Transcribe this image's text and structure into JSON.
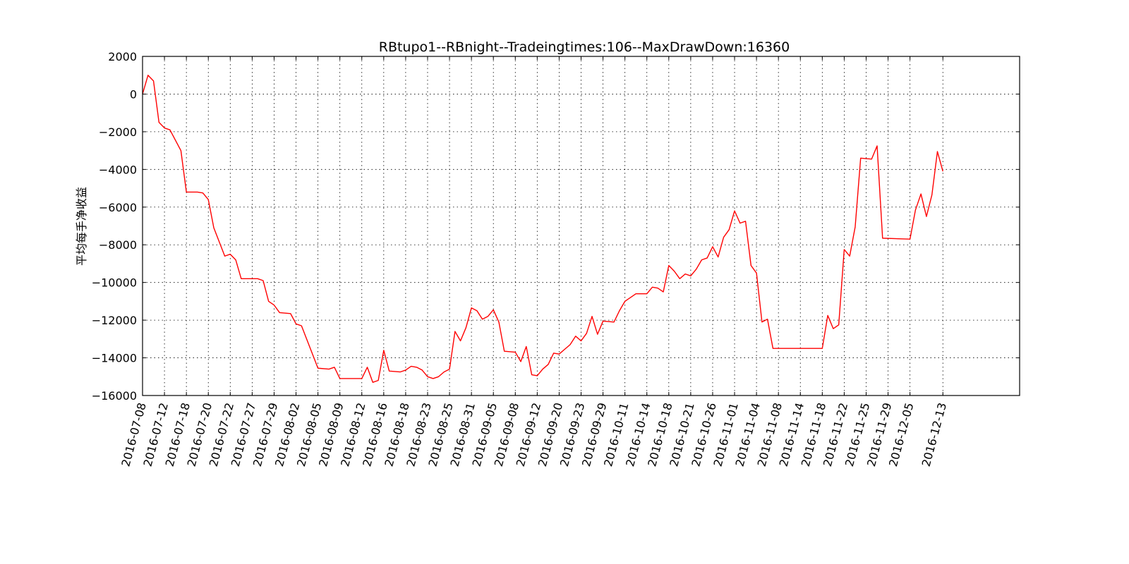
{
  "chart_data": {
    "type": "line",
    "title": "RBtupo1--RBnight--Tradeingtimes:106--MaxDrawDown:16360",
    "xlabel": "",
    "ylabel": "平均每手净收益",
    "ylim": [
      -16000,
      2000
    ],
    "yticks": [
      2000,
      0,
      -2000,
      -4000,
      -6000,
      -8000,
      -10000,
      -12000,
      -14000,
      -16000
    ],
    "xlim": [
      0,
      160
    ],
    "xticks": [
      {
        "x": 0,
        "label": "2016-07-08"
      },
      {
        "x": 4,
        "label": "2016-07-12"
      },
      {
        "x": 8,
        "label": "2016-07-18"
      },
      {
        "x": 12,
        "label": "2016-07-20"
      },
      {
        "x": 16,
        "label": "2016-07-22"
      },
      {
        "x": 20,
        "label": "2016-07-27"
      },
      {
        "x": 24,
        "label": "2016-07-29"
      },
      {
        "x": 28,
        "label": "2016-08-02"
      },
      {
        "x": 32,
        "label": "2016-08-05"
      },
      {
        "x": 36,
        "label": "2016-08-09"
      },
      {
        "x": 40,
        "label": "2016-08-12"
      },
      {
        "x": 44,
        "label": "2016-08-16"
      },
      {
        "x": 48,
        "label": "2016-08-18"
      },
      {
        "x": 52,
        "label": "2016-08-23"
      },
      {
        "x": 56,
        "label": "2016-08-25"
      },
      {
        "x": 60,
        "label": "2016-08-31"
      },
      {
        "x": 64,
        "label": "2016-09-05"
      },
      {
        "x": 68,
        "label": "2016-09-08"
      },
      {
        "x": 72,
        "label": "2016-09-12"
      },
      {
        "x": 76,
        "label": "2016-09-20"
      },
      {
        "x": 80,
        "label": "2016-09-23"
      },
      {
        "x": 84,
        "label": "2016-09-29"
      },
      {
        "x": 88,
        "label": "2016-10-11"
      },
      {
        "x": 92,
        "label": "2016-10-14"
      },
      {
        "x": 96,
        "label": "2016-10-18"
      },
      {
        "x": 100,
        "label": "2016-10-21"
      },
      {
        "x": 104,
        "label": "2016-10-26"
      },
      {
        "x": 108,
        "label": "2016-11-01"
      },
      {
        "x": 112,
        "label": "2016-11-04"
      },
      {
        "x": 116,
        "label": "2016-11-08"
      },
      {
        "x": 120,
        "label": "2016-11-14"
      },
      {
        "x": 124,
        "label": "2016-11-18"
      },
      {
        "x": 128,
        "label": "2016-11-22"
      },
      {
        "x": 132,
        "label": "2016-11-25"
      },
      {
        "x": 136,
        "label": "2016-11-29"
      },
      {
        "x": 140,
        "label": "2016-12-05"
      },
      {
        "x": 146,
        "label": "2016-12-13"
      }
    ],
    "grid": true,
    "series": [
      {
        "color": "#ff0000",
        "points": [
          [
            0,
            0
          ],
          [
            1,
            1000
          ],
          [
            2,
            700
          ],
          [
            3,
            -1500
          ],
          [
            4,
            -1800
          ],
          [
            5,
            -1900
          ],
          [
            7,
            -3000
          ],
          [
            8,
            -5200
          ],
          [
            10,
            -5200
          ],
          [
            11,
            -5250
          ],
          [
            12,
            -5600
          ],
          [
            13,
            -7100
          ],
          [
            15,
            -8600
          ],
          [
            16,
            -8500
          ],
          [
            17,
            -8800
          ],
          [
            18,
            -9800
          ],
          [
            20,
            -9800
          ],
          [
            21,
            -9800
          ],
          [
            22,
            -9900
          ],
          [
            23,
            -11000
          ],
          [
            24,
            -11200
          ],
          [
            25,
            -11600
          ],
          [
            27,
            -11650
          ],
          [
            28,
            -12200
          ],
          [
            29,
            -12300
          ],
          [
            32,
            -14550
          ],
          [
            34,
            -14600
          ],
          [
            35,
            -14500
          ],
          [
            36,
            -15100
          ],
          [
            40,
            -15100
          ],
          [
            41,
            -14500
          ],
          [
            42,
            -15300
          ],
          [
            43,
            -15200
          ],
          [
            44,
            -13600
          ],
          [
            45,
            -14700
          ],
          [
            47,
            -14750
          ],
          [
            48,
            -14650
          ],
          [
            49,
            -14450
          ],
          [
            50,
            -14500
          ],
          [
            51,
            -14650
          ],
          [
            52,
            -15000
          ],
          [
            53,
            -15100
          ],
          [
            54,
            -15000
          ],
          [
            55,
            -14750
          ],
          [
            56,
            -14600
          ],
          [
            57,
            -12600
          ],
          [
            58,
            -13100
          ],
          [
            59,
            -12400
          ],
          [
            60,
            -11350
          ],
          [
            61,
            -11500
          ],
          [
            62,
            -11950
          ],
          [
            63,
            -11800
          ],
          [
            64,
            -11450
          ],
          [
            65,
            -12100
          ],
          [
            66,
            -13650
          ],
          [
            68,
            -13700
          ],
          [
            69,
            -14200
          ],
          [
            70,
            -13400
          ],
          [
            71,
            -14900
          ],
          [
            72,
            -14950
          ],
          [
            73,
            -14600
          ],
          [
            74,
            -14350
          ],
          [
            75,
            -13750
          ],
          [
            76,
            -13800
          ],
          [
            77,
            -13550
          ],
          [
            78,
            -13300
          ],
          [
            79,
            -12850
          ],
          [
            80,
            -13100
          ],
          [
            81,
            -12700
          ],
          [
            82,
            -11800
          ],
          [
            83,
            -12750
          ],
          [
            84,
            -12050
          ],
          [
            86,
            -12100
          ],
          [
            87,
            -11500
          ],
          [
            88,
            -11000
          ],
          [
            89,
            -10800
          ],
          [
            90,
            -10600
          ],
          [
            92,
            -10600
          ],
          [
            93,
            -10250
          ],
          [
            94,
            -10300
          ],
          [
            95,
            -10500
          ],
          [
            96,
            -9100
          ],
          [
            97,
            -9400
          ],
          [
            98,
            -9800
          ],
          [
            99,
            -9550
          ],
          [
            100,
            -9650
          ],
          [
            101,
            -9300
          ],
          [
            102,
            -8800
          ],
          [
            103,
            -8700
          ],
          [
            104,
            -8100
          ],
          [
            105,
            -8650
          ],
          [
            106,
            -7600
          ],
          [
            107,
            -7200
          ],
          [
            108,
            -6200
          ],
          [
            109,
            -6850
          ],
          [
            110,
            -6750
          ],
          [
            111,
            -9100
          ],
          [
            112,
            -9500
          ],
          [
            113,
            -12100
          ],
          [
            114,
            -11950
          ],
          [
            115,
            -13500
          ],
          [
            124,
            -13500
          ],
          [
            125,
            -11750
          ],
          [
            126,
            -12450
          ],
          [
            127,
            -12250
          ],
          [
            128,
            -8250
          ],
          [
            129,
            -8600
          ],
          [
            130,
            -7050
          ],
          [
            131,
            -3400
          ],
          [
            133,
            -3450
          ],
          [
            134,
            -2750
          ],
          [
            135,
            -7650
          ],
          [
            140,
            -7700
          ],
          [
            141,
            -6150
          ],
          [
            142,
            -5300
          ],
          [
            143,
            -6500
          ],
          [
            144,
            -5350
          ],
          [
            145,
            -3050
          ],
          [
            146,
            -4100
          ]
        ]
      }
    ]
  }
}
